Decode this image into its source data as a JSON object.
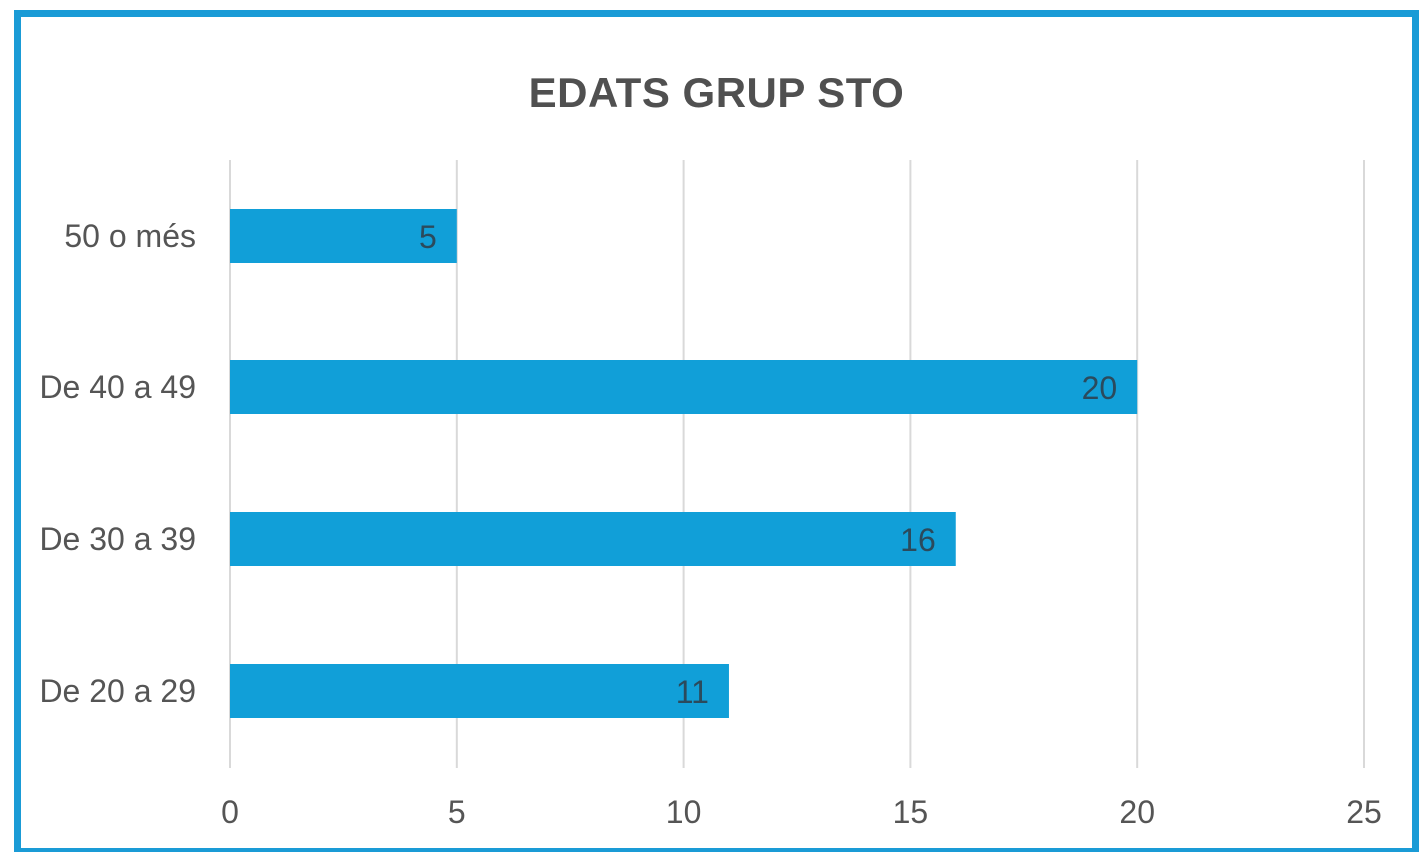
{
  "chart_data": {
    "type": "bar",
    "orientation": "horizontal",
    "title": "EDATS GRUP STO",
    "categories": [
      "50 o més",
      "De 40 a 49",
      "De 30 a 39",
      "De 20 a 29"
    ],
    "values": [
      5,
      20,
      16,
      11
    ],
    "xlim": [
      0,
      25
    ],
    "xticks": [
      "0",
      "5",
      "10",
      "15",
      "20",
      "25"
    ],
    "grid": true,
    "data_labels": true,
    "bar_color": "#119fd8",
    "frame_color": "#1a9bd6"
  }
}
